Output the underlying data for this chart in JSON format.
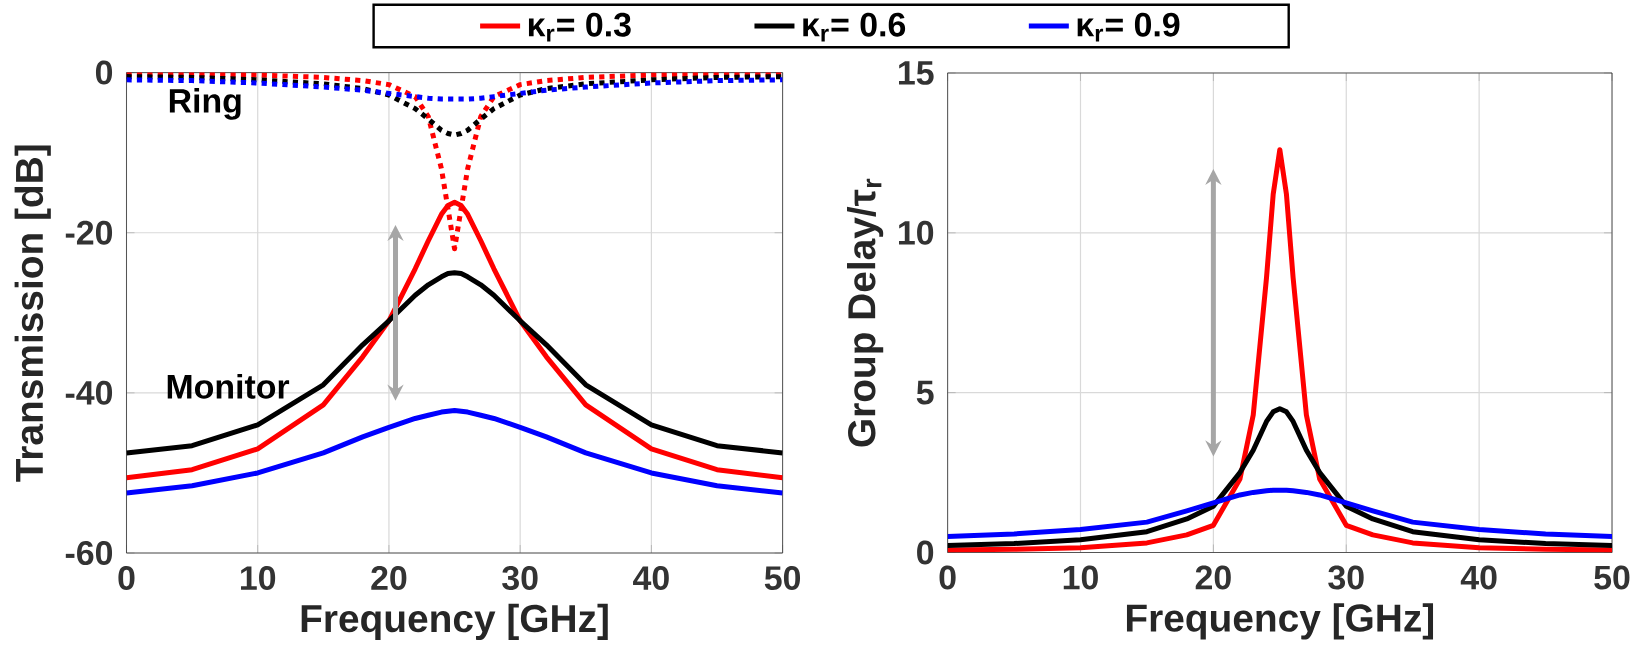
{
  "chart_data": [
    {
      "type": "line",
      "xlabel": "Frequency [GHz]",
      "ylabel": "Transmission [dB]",
      "x": [
        0,
        5,
        10,
        15,
        18,
        20,
        22,
        23,
        24,
        24.5,
        25,
        25.5,
        26,
        27,
        28,
        30,
        32,
        35,
        40,
        45,
        50
      ],
      "series": [
        {
          "name": "κ$_{r}$= 0.3",
          "color": "#ff0000",
          "line_style": "solid",
          "values": [
            -50.6,
            -49.6,
            -47,
            -41.5,
            -35.5,
            -31,
            -24.5,
            -21,
            -17.7,
            -16.6,
            -16.2,
            -16.6,
            -17.7,
            -21,
            -24.5,
            -31,
            -35.5,
            -41.5,
            -47,
            -49.6,
            -50.6
          ]
        },
        {
          "name": "κ$_{r}$= 0.6",
          "color": "#000000",
          "line_style": "solid",
          "values": [
            -47.5,
            -46.6,
            -44,
            -39,
            -34,
            -31,
            -27.8,
            -26.5,
            -25.5,
            -25.1,
            -25,
            -25.1,
            -25.5,
            -26.5,
            -27.8,
            -31,
            -34,
            -39,
            -44,
            -46.6,
            -47.5
          ]
        },
        {
          "name": "κ$_{r}$= 0.9",
          "color": "#0000ff",
          "line_style": "solid",
          "values": [
            -52.5,
            -51.6,
            -50,
            -47.5,
            -45.5,
            -44.3,
            -43.2,
            -42.8,
            -42.4,
            -42.3,
            -42.2,
            -42.3,
            -42.4,
            -42.8,
            -43.2,
            -44.3,
            -45.5,
            -47.5,
            -50,
            -51.6,
            -52.5
          ]
        },
        {
          "color": "#ff0000",
          "line_style": "dotted",
          "values": [
            -0.2,
            -0.2,
            -0.3,
            -0.6,
            -1,
            -1.5,
            -3,
            -5.5,
            -12,
            -17,
            -22,
            -17,
            -12,
            -5.5,
            -3,
            -1.5,
            -1,
            -0.6,
            -0.3,
            -0.2,
            -0.2
          ]
        },
        {
          "color": "#000000",
          "line_style": "dotted",
          "values": [
            -0.5,
            -0.6,
            -0.9,
            -1.4,
            -2,
            -2.8,
            -4.5,
            -5.8,
            -7.2,
            -7.6,
            -7.8,
            -7.6,
            -7.2,
            -5.8,
            -4.5,
            -2.8,
            -2,
            -1.4,
            -0.9,
            -0.6,
            -0.5
          ]
        },
        {
          "color": "#0000ff",
          "line_style": "dotted",
          "values": [
            -0.9,
            -1,
            -1.3,
            -1.8,
            -2.2,
            -2.6,
            -3,
            -3.2,
            -3.3,
            -3.3,
            -3.3,
            -3.3,
            -3.3,
            -3.2,
            -3,
            -2.6,
            -2.2,
            -1.8,
            -1.3,
            -1,
            -0.9
          ]
        }
      ],
      "annotations": [
        "Ring",
        "Monitor"
      ],
      "xlim": [
        0,
        50
      ],
      "xticks": [
        0,
        10,
        20,
        30,
        40,
        50
      ],
      "ylim": [
        -60,
        0
      ],
      "yticks": [
        -60,
        -40,
        -20,
        0
      ],
      "grid": true,
      "legend": "top"
    },
    {
      "type": "line",
      "xlabel": "Frequency [GHz]",
      "ylabel": "Group Delay/τ$_{r}$",
      "x": [
        0,
        5,
        10,
        15,
        18,
        20,
        22,
        23,
        24,
        24.5,
        25,
        25.5,
        26,
        27,
        28,
        30,
        32,
        35,
        40,
        45,
        50
      ],
      "series": [
        {
          "color": "#ff0000",
          "line_style": "solid",
          "values": [
            0.08,
            0.1,
            0.15,
            0.3,
            0.55,
            0.85,
            2.3,
            4.3,
            8.6,
            11.2,
            12.6,
            11.2,
            8.6,
            4.3,
            2.3,
            0.85,
            0.55,
            0.3,
            0.15,
            0.1,
            0.08
          ]
        },
        {
          "color": "#000000",
          "line_style": "solid",
          "values": [
            0.22,
            0.28,
            0.4,
            0.65,
            1.05,
            1.45,
            2.5,
            3.2,
            4.1,
            4.4,
            4.5,
            4.4,
            4.1,
            3.2,
            2.5,
            1.45,
            1.05,
            0.65,
            0.4,
            0.28,
            0.22
          ]
        },
        {
          "color": "#0000ff",
          "line_style": "solid",
          "values": [
            0.5,
            0.58,
            0.72,
            0.95,
            1.3,
            1.55,
            1.8,
            1.88,
            1.93,
            1.95,
            1.95,
            1.95,
            1.93,
            1.88,
            1.8,
            1.55,
            1.3,
            0.95,
            0.72,
            0.58,
            0.5
          ]
        }
      ],
      "xlim": [
        0,
        50
      ],
      "xticks": [
        0,
        10,
        20,
        30,
        40,
        50
      ],
      "ylim": [
        0,
        15
      ],
      "yticks": [
        0,
        5,
        10,
        15
      ],
      "grid": true
    }
  ]
}
